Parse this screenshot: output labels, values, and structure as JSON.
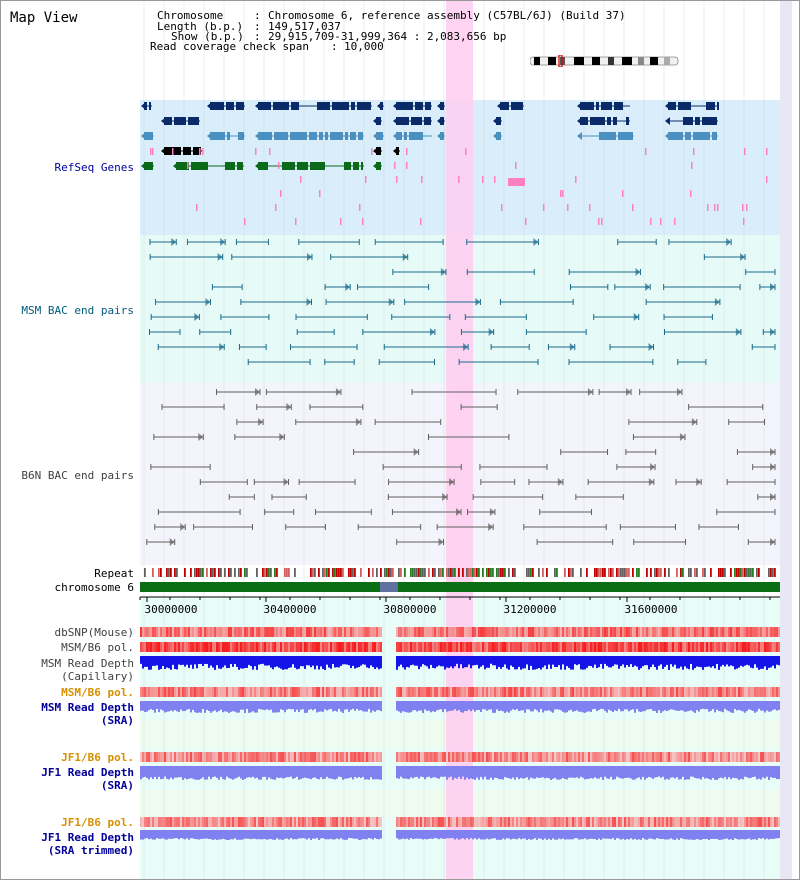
{
  "title": "Map View",
  "header": {
    "chromosome_label": "Chromosome",
    "chromosome_value": "Chromosome 6, reference assembly (C57BL/6J) (Build 37)",
    "length_label": "Length (b.p.)",
    "length_value": "149,517,037",
    "show_label": "Show (b.p.)",
    "show_value": "29,915,709-31,999,364 : 2,083,656 bp",
    "coverage_label": "Read coverage check span",
    "coverage_value": "10,000"
  },
  "tracks": {
    "refseq": "RefSeq Genes",
    "msm_bac": "MSM BAC end pairs",
    "b6n_bac": "B6N BAC end pairs",
    "repeat": "Repeat",
    "chromosome": "chromosome 6",
    "dbsnp": "dbSNP(Mouse)",
    "msm_b6_pol_1": "MSM/B6 pol.",
    "msm_read_depth_cap_1": "MSM Read Depth",
    "msm_read_depth_cap_2": "(Capillary)",
    "msm_b6_pol_2": "MSM/B6 pol.",
    "msm_read_depth_sra_1": "MSM Read Depth",
    "msm_read_depth_sra_2": "(SRA)",
    "jf1_b6_pol_1": "JF1/B6 pol.",
    "jf1_read_depth_sra_1": "JF1 Read Depth",
    "jf1_read_depth_sra_2": "(SRA)",
    "jf1_b6_pol_2": "JF1/B6 pol.",
    "jf1_read_depth_trim_1": "JF1 Read Depth",
    "jf1_read_depth_trim_2": "(SRA trimmed)"
  },
  "axis": {
    "ticks": [
      "30000000",
      "30400000",
      "30800000",
      "31200000",
      "31600000"
    ]
  },
  "colors": {
    "refseq_bg": "#d9eefa",
    "msm_bg": "#e6fbf8",
    "b6n_bg": "#f4f4fc",
    "data_bg": "#e8fcf8",
    "highlight": "#ffcdf0",
    "gene_navy": "#0a2a6a",
    "gene_blue": "#4a90c0",
    "gene_green": "#0a6a1a",
    "msm_line": "#1a6a8a",
    "b6n_line": "#606060",
    "chrom_green": "#0a6e14",
    "depth_blue": "#1414e8",
    "depth_light": "#8080f0",
    "label_navy": "#00009a",
    "label_orange": "#d89000",
    "label_teal": "#005a7a"
  }
}
